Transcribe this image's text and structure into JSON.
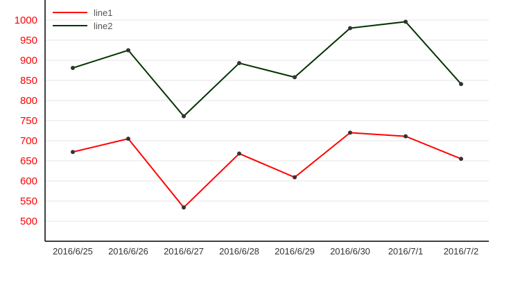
{
  "chart_data": {
    "type": "line",
    "title": "",
    "xlabel": "",
    "ylabel": "",
    "categories": [
      "2016/6/25",
      "2016/6/26",
      "2016/6/27",
      "2016/6/28",
      "2016/6/29",
      "2016/6/30",
      "2016/7/1",
      "2016/7/2"
    ],
    "series": [
      {
        "name": "line1",
        "color": "#ff0000",
        "values": [
          672,
          705,
          534,
          668,
          609,
          720,
          711,
          655
        ]
      },
      {
        "name": "line2",
        "color": "#003300",
        "values": [
          881,
          925,
          761,
          893,
          858,
          980,
          996,
          841
        ]
      }
    ],
    "ylim": [
      450,
      1050
    ],
    "yticks": [
      500,
      550,
      600,
      650,
      700,
      750,
      800,
      850,
      900,
      950,
      1000
    ],
    "ytick_color": "#ff0000",
    "grid": true,
    "legend_position": "top-left"
  }
}
